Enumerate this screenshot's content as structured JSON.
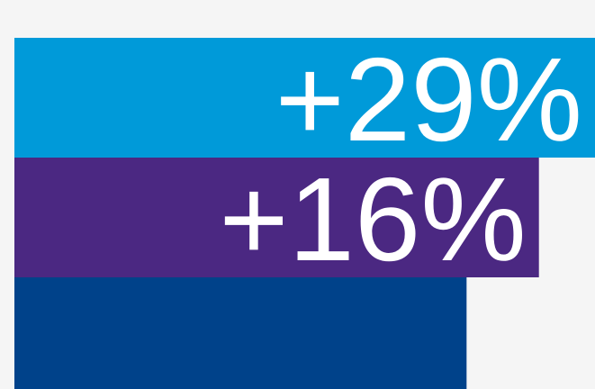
{
  "chart_data": {
    "type": "bar",
    "orientation": "horizontal",
    "values": [
      29,
      16,
      0
    ],
    "value_labels": [
      "+29%",
      "+16%",
      null
    ],
    "colors": [
      "#009ad9",
      "#4b2882",
      "#00428a"
    ],
    "xlim": [
      -100,
      29
    ]
  }
}
